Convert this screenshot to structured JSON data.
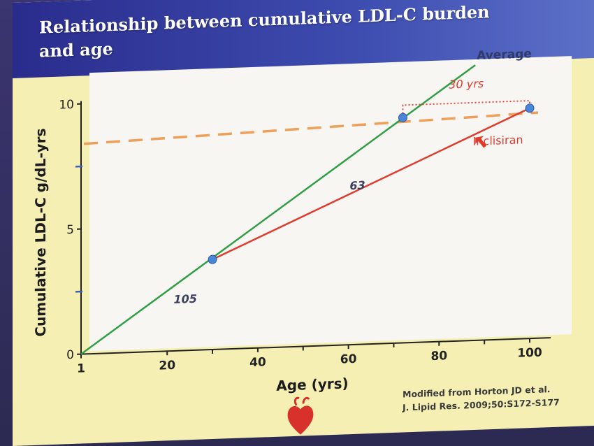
{
  "slide": {
    "title_line1": "Relationship between cumulative LDL-C burden",
    "title_line2": "and age",
    "citation_line1": "Modified from Horton JD et al.",
    "citation_line2": "J. Lipid Res. 2009;50:S172-S177"
  },
  "colors": {
    "average": "#2e9e44",
    "inclisiran": "#e03a2c",
    "threshold": "#eea05a",
    "points": "#4a86d6",
    "bracket": "#e0483c"
  },
  "chart_data": {
    "type": "line",
    "title": "Relationship between cumulative LDL-C burden and age",
    "xlabel": "Age (yrs)",
    "ylabel": "Cumulative LDL-C g/dL-yrs",
    "x_ticks": [
      {
        "label": "1",
        "value": 1
      },
      {
        "label": "20",
        "value": 20
      },
      {
        "label": "40",
        "value": 40
      },
      {
        "label": "60",
        "value": 60
      },
      {
        "label": "80",
        "value": 80
      },
      {
        "label": "100",
        "value": 100
      }
    ],
    "y_ticks": [
      {
        "label": "0",
        "value": 0
      },
      {
        "label": "5",
        "value": 5
      },
      {
        "label": "10",
        "value": 10
      }
    ],
    "xlim": [
      1,
      100
    ],
    "ylim": [
      0,
      10
    ],
    "series": [
      {
        "name": "Average",
        "color": "#2e9e44",
        "points": [
          [
            1,
            0
          ],
          [
            88,
            11
          ]
        ]
      },
      {
        "name": "Inclisiran",
        "color": "#e03a2c",
        "points": [
          [
            30,
            3.6
          ],
          [
            100,
            9.2
          ]
        ]
      }
    ],
    "threshold": {
      "y": 8.4,
      "color": "#eea05a"
    },
    "markers": [
      [
        30,
        3.6
      ],
      [
        72,
        9.0
      ],
      [
        100,
        9.2
      ]
    ],
    "annotations": [
      {
        "text": "105",
        "x": 24,
        "y": 1.9
      },
      {
        "text": "63",
        "x": 62,
        "y": 6.2
      },
      {
        "text": "Inclisiran",
        "x": 93,
        "y": 7.8
      },
      {
        "text": "30 yrs",
        "x": 86,
        "y": 10.1
      }
    ],
    "bracket": {
      "x_start": 72,
      "x_end": 100,
      "y": 9.5,
      "label": "30 yrs"
    },
    "grid": false
  }
}
